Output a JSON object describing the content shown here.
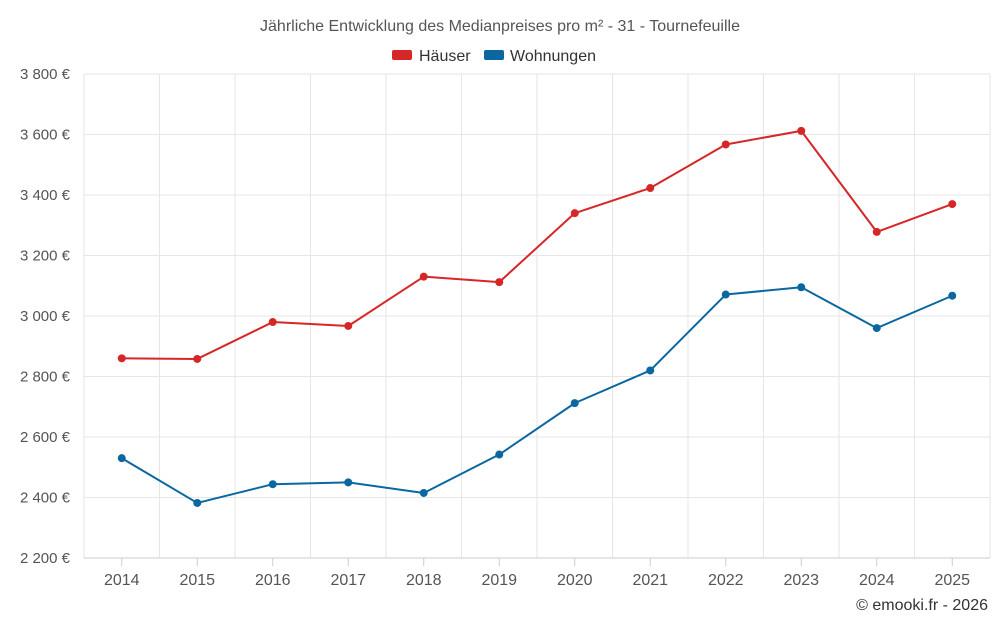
{
  "chart_data": {
    "type": "line",
    "title": "Jährliche Entwicklung des Medianpreises pro m² - 31 - Tournefeuille",
    "categories": [
      "2014",
      "2015",
      "2016",
      "2017",
      "2018",
      "2019",
      "2020",
      "2021",
      "2022",
      "2023",
      "2024",
      "2025"
    ],
    "series": [
      {
        "name": "Häuser",
        "color": "#d62728",
        "values": [
          2860,
          2858,
          2980,
          2967,
          3130,
          3112,
          3340,
          3423,
          3567,
          3612,
          3278,
          3370
        ]
      },
      {
        "name": "Wohnungen",
        "color": "#0a67a0",
        "values": [
          2530,
          2382,
          2444,
          2450,
          2415,
          2542,
          2712,
          2820,
          3071,
          3095,
          2960,
          3067
        ]
      }
    ],
    "ylim": [
      2200,
      3800
    ],
    "yticks": [
      2200,
      2400,
      2600,
      2800,
      3000,
      3200,
      3400,
      3600,
      3800
    ],
    "ytick_labels": [
      "2 200 €",
      "2 400 €",
      "2 600 €",
      "2 800 €",
      "3 000 €",
      "3 200 €",
      "3 400 €",
      "3 600 €",
      "3 800 €"
    ],
    "xlabel": "",
    "ylabel": "",
    "legend_position": "top-center",
    "grid": true
  },
  "credit": "© emooki.fr - 2026"
}
